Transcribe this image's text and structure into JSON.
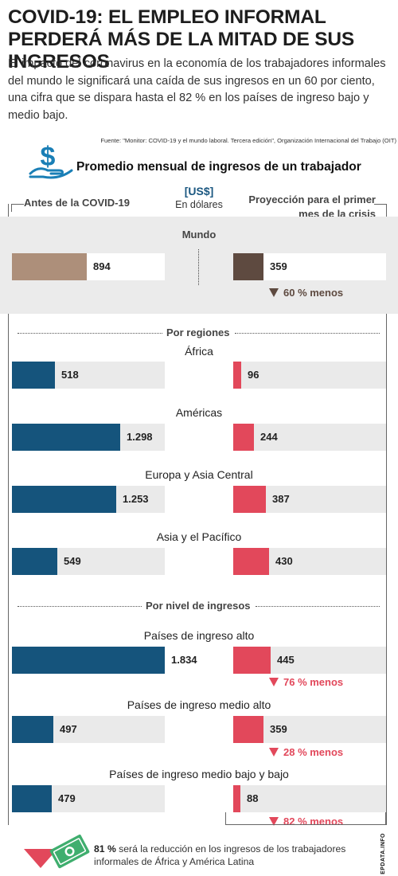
{
  "header": {
    "title": "COVID-19: EL EMPLEO INFORMAL PERDERÁ MÁS DE LA MITAD DE SUS INGRESOS",
    "intro": "El impacto del coronavirus en la economía de los trabajadores informales del mundo le significará una caída de sus ingresos en un 60 por ciento, una cifra que se dispara hasta el 82 % en los países de ingreso bajo y medio bajo.",
    "source": "Fuente: \"Monitor: COVID-19 y el mundo laboral. Tercera edición\", Organización Internacional del Trabajo (OIT)",
    "subtitle": "Promedio mensual de ingresos de un trabajador"
  },
  "columns": {
    "left": "Antes de la COVID-19",
    "unit_main": "[US$]",
    "unit_sub": "En dólares",
    "right": "Proyección para el primer mes de la crisis"
  },
  "colors": {
    "world_before": "#ad8f7a",
    "world_after": "#5e4a40",
    "before": "#15547c",
    "after": "#e2485b",
    "arrow_world": "#5e4a40",
    "arrow_red": "#e2485b"
  },
  "chart_data": {
    "type": "bar",
    "unit": "US$",
    "max_value": 1834,
    "series": [
      {
        "name": "Antes de la COVID-19"
      },
      {
        "name": "Proyección para el primer mes de la crisis"
      }
    ],
    "groups": [
      {
        "title": "",
        "categories": [
          {
            "label": "Mundo",
            "before": 894,
            "after": 359,
            "before_label": "894",
            "after_label": "359",
            "reduction": "60 % menos"
          }
        ]
      },
      {
        "title": "Por regiones",
        "categories": [
          {
            "label": "África",
            "before": 518,
            "after": 96,
            "before_label": "518",
            "after_label": "96"
          },
          {
            "label": "Américas",
            "before": 1298,
            "after": 244,
            "before_label": "1.298",
            "after_label": "244"
          },
          {
            "label": "Europa y Asia Central",
            "before": 1253,
            "after": 387,
            "before_label": "1.253",
            "after_label": "387"
          },
          {
            "label": "Asia y el Pacífico",
            "before": 549,
            "after": 430,
            "before_label": "549",
            "after_label": "430"
          }
        ]
      },
      {
        "title": "Por nivel de ingresos",
        "categories": [
          {
            "label": "Países de ingreso alto",
            "before": 1834,
            "after": 445,
            "before_label": "1.834",
            "after_label": "445",
            "reduction": "76 % menos"
          },
          {
            "label": "Países de ingreso medio alto",
            "before": 497,
            "after": 359,
            "before_label": "497",
            "after_label": "359",
            "reduction": "28 % menos"
          },
          {
            "label": "Países de ingreso medio bajo y bajo",
            "before": 479,
            "after": 88,
            "before_label": "479",
            "after_label": "88",
            "reduction": "82 % menos"
          }
        ]
      }
    ]
  },
  "footer": {
    "highlight": "81 %",
    "text": " será la reducción en los ingresos de los trabajadores informales de África y América Latina",
    "icon": "money-bill-down-arrow-icon",
    "brand": "EPDATA.INFO"
  }
}
